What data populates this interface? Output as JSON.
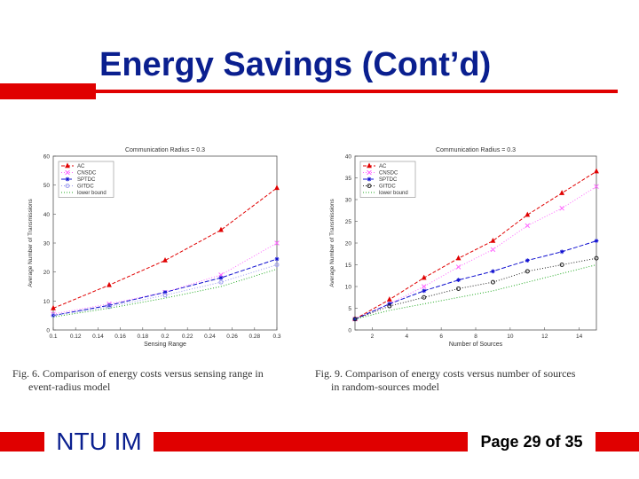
{
  "slide": {
    "title": "Energy Savings (Cont’d)",
    "footer_left": "NTU IM",
    "footer_right": "Page 29 of 35",
    "accent_color": "#e00000",
    "title_color": "#0a1f8f"
  },
  "captions": [
    {
      "line1": "Fig. 6.   Comparison of energy costs versus sensing range in",
      "line2": "event-radius model"
    },
    {
      "line1": "Fig. 9.   Comparison of energy costs versus number of sources",
      "line2": "in random-sources model"
    }
  ],
  "chart_data": [
    {
      "type": "line",
      "title": "Communication Radius = 0.3",
      "xlabel": "Sensing Range",
      "ylabel": "Average Number of Transmissions",
      "xlim": [
        0.1,
        0.3
      ],
      "ylim": [
        0,
        60
      ],
      "x_ticks": [
        "0.1",
        "0.12",
        "0.14",
        "0.16",
        "0.18",
        "0.2",
        "0.22",
        "0.24",
        "0.26",
        "0.28",
        "0.3"
      ],
      "y_ticks": [
        "0",
        "10",
        "20",
        "30",
        "40",
        "50",
        "60"
      ],
      "legend_position": "top-left",
      "grid": false,
      "x": [
        0.1,
        0.15,
        0.2,
        0.25,
        0.3
      ],
      "series": [
        {
          "name": "AC",
          "color": "#e00000",
          "marker": "triangle",
          "dash": "4,2",
          "values": [
            7.5,
            15.5,
            24,
            34.5,
            49
          ]
        },
        {
          "name": "CNSDC",
          "color": "#ff66ff",
          "marker": "x",
          "dash": "1,2",
          "values": [
            5.5,
            9,
            13,
            19,
            30
          ]
        },
        {
          "name": "SPTDC",
          "color": "#1010d0",
          "marker": "star",
          "dash": "5,2",
          "values": [
            5,
            8.5,
            13,
            18,
            24.5
          ]
        },
        {
          "name": "GITDC",
          "color": "#9999ee",
          "marker": "circle",
          "dash": "1,2",
          "values": [
            5,
            8,
            12,
            16.5,
            22.5
          ]
        },
        {
          "name": "lower bound",
          "color": "#22aa22",
          "marker": "none",
          "dash": "1,2",
          "values": [
            4.5,
            7.5,
            11,
            15,
            21
          ]
        }
      ]
    },
    {
      "type": "line",
      "title": "Communication Radius = 0.3",
      "xlabel": "Number of Sources",
      "ylabel": "Average Number of Transmissions",
      "xlim": [
        1,
        15
      ],
      "ylim": [
        0,
        40
      ],
      "x_ticks": [
        "2",
        "4",
        "6",
        "8",
        "10",
        "12",
        "14"
      ],
      "y_ticks": [
        "0",
        "5",
        "10",
        "15",
        "20",
        "25",
        "30",
        "35",
        "40"
      ],
      "legend_position": "top-left",
      "grid": false,
      "x": [
        1,
        3,
        5,
        7,
        9,
        11,
        13,
        15
      ],
      "series": [
        {
          "name": "AC",
          "color": "#e00000",
          "marker": "triangle",
          "dash": "4,2",
          "values": [
            2.5,
            7,
            12,
            16.5,
            20.5,
            26.5,
            31.5,
            36.5
          ]
        },
        {
          "name": "CNSDC",
          "color": "#ff66ff",
          "marker": "x",
          "dash": "1,2",
          "values": [
            2.5,
            6,
            10,
            14.5,
            18.5,
            24,
            28,
            33
          ]
        },
        {
          "name": "SPTDC",
          "color": "#1010d0",
          "marker": "star",
          "dash": "5,2",
          "values": [
            2.5,
            6,
            9,
            11.5,
            13.5,
            16,
            18,
            20.5
          ]
        },
        {
          "name": "GITDC",
          "color": "#222222",
          "marker": "circle",
          "dash": "1,2",
          "values": [
            2.5,
            5.5,
            7.5,
            9.5,
            11,
            13.5,
            15,
            16.5
          ]
        },
        {
          "name": "lower bound",
          "color": "#22aa22",
          "marker": "none",
          "dash": "1,2",
          "values": [
            2.5,
            4.5,
            6,
            7.5,
            9,
            11,
            13,
            15
          ]
        }
      ]
    }
  ]
}
